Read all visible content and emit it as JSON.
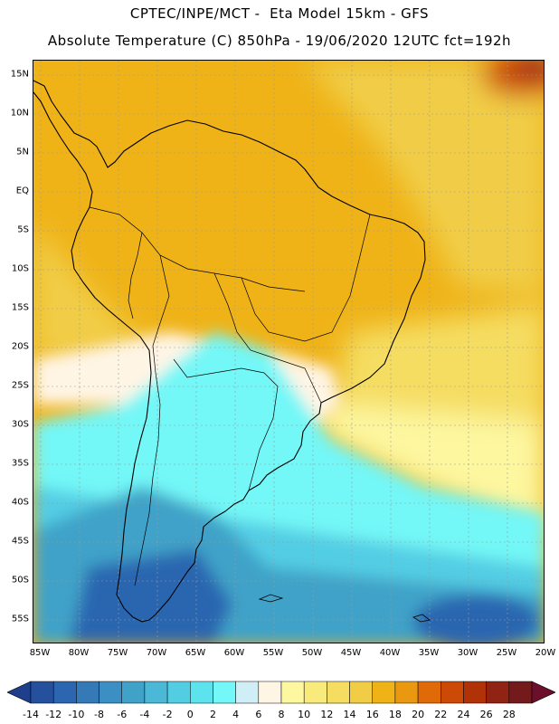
{
  "title_line1": "CPTEC/INPE/MCT -  Eta Model 15km - GFS",
  "title_line2": "Absolute Temperature (C) 850hPa - 19/06/2020 12UTC fct=192h",
  "lat_labels": [
    "15N",
    "10N",
    "5N",
    "EQ",
    "5S",
    "10S",
    "15S",
    "20S",
    "25S",
    "30S",
    "35S",
    "40S",
    "45S",
    "50S",
    "55S"
  ],
  "lon_labels": [
    "85W",
    "80W",
    "75W",
    "70W",
    "65W",
    "60W",
    "55W",
    "50W",
    "45W",
    "40W",
    "35W",
    "30W",
    "25W",
    "20W"
  ],
  "colorbar": {
    "labels": [
      "-14",
      "-12",
      "-10",
      "-8",
      "-6",
      "-4",
      "-2",
      "0",
      "2",
      "4",
      "6",
      "8",
      "10",
      "12",
      "14",
      "16",
      "18",
      "20",
      "22",
      "24",
      "26",
      "28"
    ],
    "colors": [
      "#1f3f8c",
      "#24509e",
      "#2c66b0",
      "#3579b7",
      "#3b8fc2",
      "#41a2c8",
      "#4bb8d8",
      "#52cde4",
      "#5de3ee",
      "#73f7f7",
      "#cfeef6",
      "#fff5e5",
      "#fdf7a0",
      "#f8eb7c",
      "#f5dd62",
      "#f1cd46",
      "#efb318",
      "#e99810",
      "#e06a08",
      "#cc4a06",
      "#b23208",
      "#912314",
      "#741a1c",
      "#6b0f2a"
    ]
  },
  "map": {
    "region": "South America",
    "lat_range": [
      -58,
      17
    ],
    "lon_range": [
      -86,
      -20
    ],
    "field": "temperature 850hPa"
  }
}
